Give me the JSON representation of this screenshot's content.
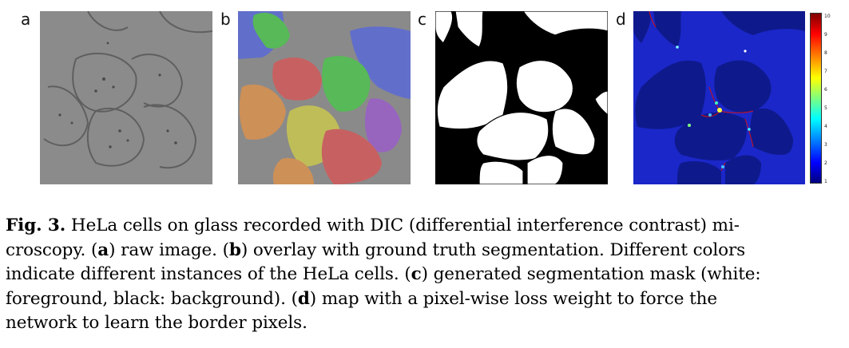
{
  "figure": {
    "panels": [
      {
        "letter": "a"
      },
      {
        "letter": "b"
      },
      {
        "letter": "c"
      },
      {
        "letter": "d"
      }
    ],
    "colorbar": {
      "ticks": [
        "10",
        "9",
        "8",
        "7",
        "6",
        "5",
        "4",
        "3",
        "2",
        "1"
      ]
    },
    "colors": {
      "instance_blue": "#5b6bd6",
      "instance_red": "#d25a5a",
      "instance_green": "#4fc24f",
      "instance_orange": "#d9924f",
      "instance_yellow": "#c9c650",
      "instance_purple": "#9a5fc8",
      "weight_background": "#1b27c8",
      "weight_cells": "#0e1a8c"
    }
  },
  "caption": {
    "fig_label": "Fig. 3.",
    "line1": " HeLa cells on glass recorded with DIC (differential interference contrast) mi-",
    "line2_pre": "croscopy. (",
    "a": "a",
    "line2_mid1": ") raw image. (",
    "b": "b",
    "line2_post": ") overlay with ground truth segmentation. Different colors",
    "line3_pre": "indicate different instances of the HeLa cells. (",
    "c": "c",
    "line3_post": ") generated segmentation mask (white:",
    "line4_pre": "foreground, black: background). (",
    "d": "d",
    "line4_post": ") map with a pixel-wise loss weight to force the",
    "line5": "network to learn the border pixels."
  }
}
